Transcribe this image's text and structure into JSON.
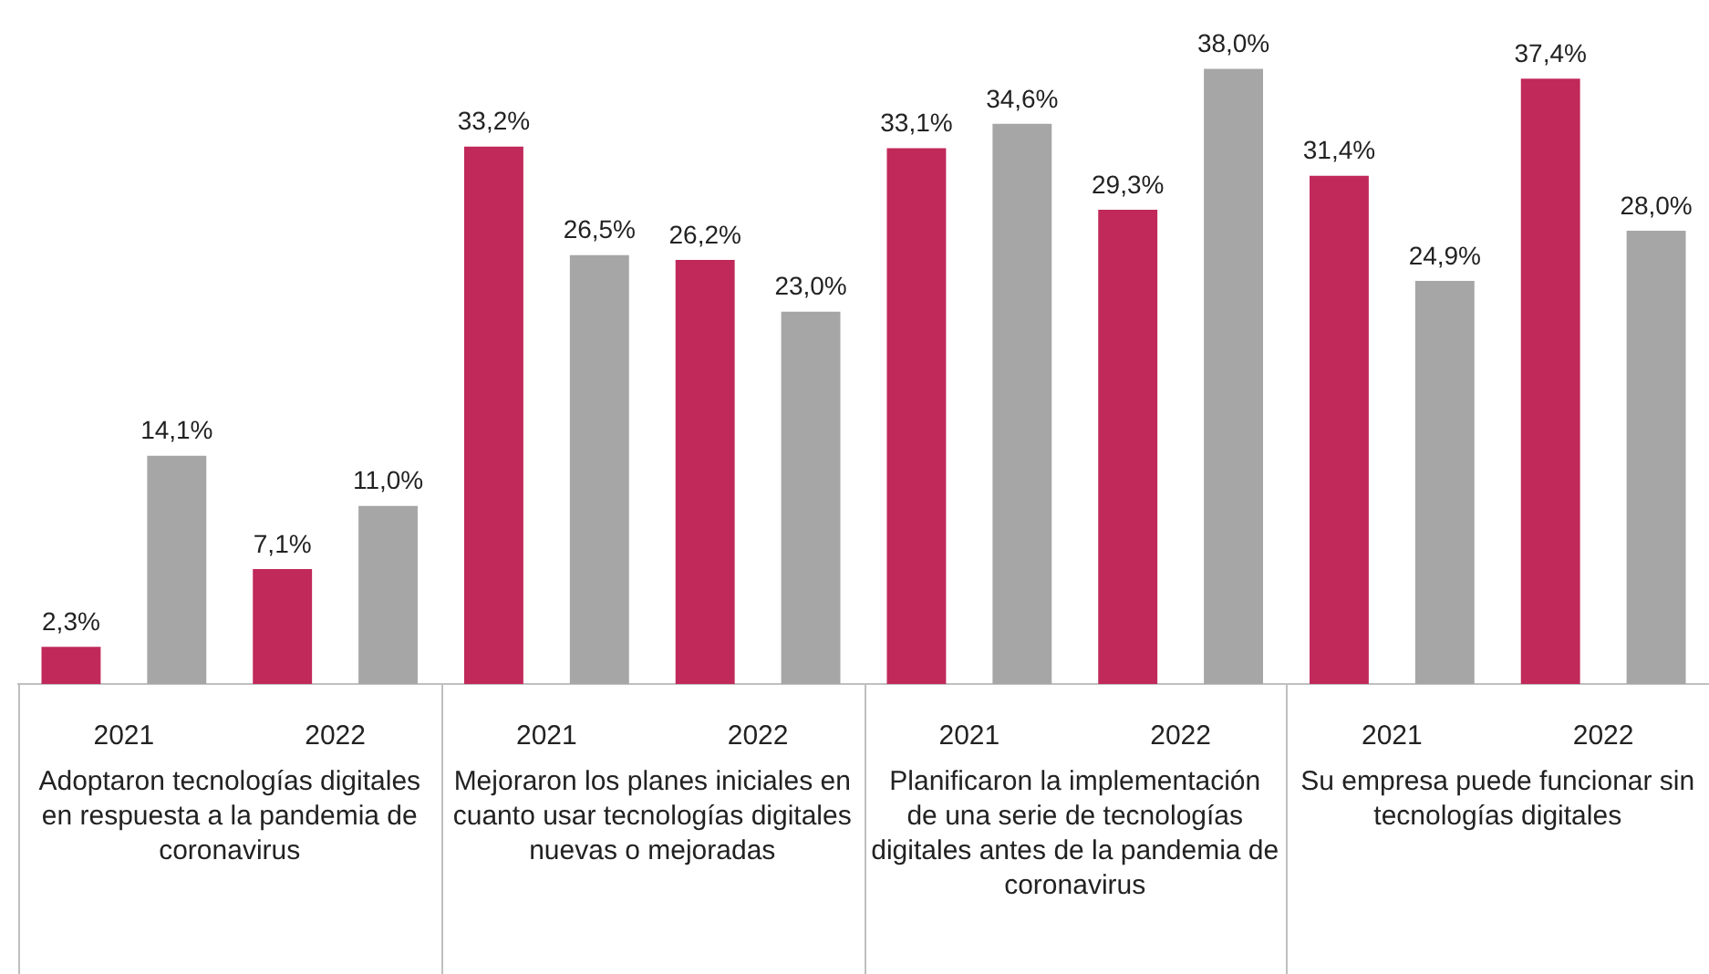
{
  "chart_data": {
    "type": "bar",
    "categories": [
      "2021",
      "2022",
      "2021",
      "2022",
      "2021",
      "2022",
      "2021",
      "2022"
    ],
    "series": [
      {
        "color": "#c0295a",
        "values": [
          2.3,
          7.1,
          33.2,
          26.2,
          33.1,
          29.3,
          31.4,
          37.4
        ],
        "value_labels": [
          "2,3%",
          "7,1%",
          "33,2%",
          "26,2%",
          "33,1%",
          "29,3%",
          "31,4%",
          "37,4%"
        ]
      },
      {
        "color": "#a6a6a6",
        "values": [
          14.1,
          11.0,
          26.5,
          23.0,
          34.6,
          38.0,
          24.9,
          28.0
        ],
        "value_labels": [
          "14,1%",
          "11,0%",
          "26,5%",
          "23,0%",
          "34,6%",
          "38,0%",
          "24,9%",
          "28,0%"
        ]
      }
    ],
    "annotations": [
      "Adoptaron tecnologías digitales en respuesta a la pandemia de coronavirus",
      "Mejoraron los planes iniciales en cuanto usar tecnologías digitales nuevas o mejoradas",
      "Planificaron la implementación de una serie de tecnologías digitales antes de la pandemia de coronavirus",
      "Su empresa puede funcionar sin tecnologías digitales"
    ],
    "grid": false,
    "legend": false
  }
}
